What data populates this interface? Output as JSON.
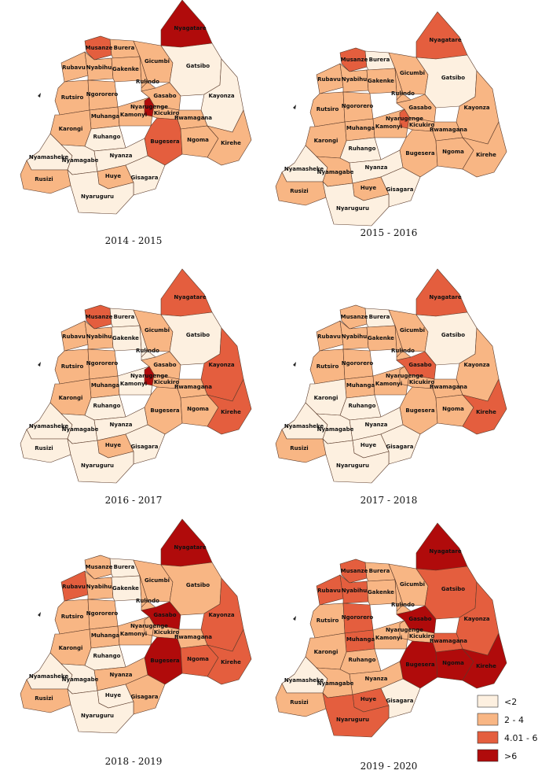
{
  "colors": {
    "c0": "#fdf0e0",
    "c1": "#f8b684",
    "c2": "#e45e3e",
    "c3": "#b00b0b"
  },
  "legend": [
    {
      "class": "c0",
      "label": "<2"
    },
    {
      "class": "c1",
      "label": "2 - 4"
    },
    {
      "class": "c2",
      "label": "4.01 - 6"
    },
    {
      "class": "c3",
      "label": ">6"
    }
  ],
  "districts": [
    "Nyagatare",
    "Musanze",
    "Burera",
    "Rubavu",
    "Nyabihu",
    "Gicumbi",
    "Gatsibo",
    "Gakenke",
    "Rulindo",
    "Kayonza",
    "Rutsiro",
    "Ngororero",
    "Gasabo",
    "Muhanga",
    "Kamonyi",
    "Nyarugenge",
    "Kicukiro",
    "Rwamagana",
    "Karongi",
    "Ruhango",
    "Bugesera",
    "Ngoma",
    "Kirehe",
    "Nyamasheke",
    "Nyamagabe",
    "Nyanza",
    "Rusizi",
    "Huye",
    "Gisagara",
    "Nyaruguru"
  ],
  "panels": [
    {
      "title": "2014 - 2015",
      "classes": {
        "Nyagatare": "c3",
        "Musanze": "c2",
        "Burera": "c1",
        "Rubavu": "c1",
        "Nyabihu": "c1",
        "Gicumbi": "c1",
        "Gatsibo": "c0",
        "Gakenke": "c1",
        "Rulindo": "c1",
        "Kayonza": "c0",
        "Rutsiro": "c1",
        "Ngororero": "c1",
        "Gasabo": "c1",
        "Muhanga": "c1",
        "Kamonyi": "c1",
        "Nyarugenge": "c3",
        "Kicukiro": "c1",
        "Rwamagana": "c1",
        "Karongi": "c1",
        "Ruhango": "c0",
        "Bugesera": "c2",
        "Ngoma": "c1",
        "Kirehe": "c1",
        "Nyamasheke": "c0",
        "Nyamagabe": "c0",
        "Nyanza": "c0",
        "Rusizi": "c1",
        "Huye": "c1",
        "Gisagara": "c0",
        "Nyaruguru": "c0"
      }
    },
    {
      "title": "2015 - 2016",
      "classes": {
        "Nyagatare": "c2",
        "Musanze": "c2",
        "Burera": "c0",
        "Rubavu": "c1",
        "Nyabihu": "c1",
        "Gicumbi": "c1",
        "Gatsibo": "c0",
        "Gakenke": "c1",
        "Rulindo": "c1",
        "Kayonza": "c1",
        "Rutsiro": "c1",
        "Ngororero": "c1",
        "Gasabo": "c1",
        "Muhanga": "c1",
        "Kamonyi": "c1",
        "Nyarugenge": "c2",
        "Kicukiro": "c1",
        "Rwamagana": "c1",
        "Karongi": "c1",
        "Ruhango": "c0",
        "Bugesera": "c1",
        "Ngoma": "c1",
        "Kirehe": "c1",
        "Nyamasheke": "c0",
        "Nyamagabe": "c1",
        "Nyanza": "c0",
        "Rusizi": "c1",
        "Huye": "c1",
        "Gisagara": "c0",
        "Nyaruguru": "c0"
      }
    },
    {
      "title": "2016 - 2017",
      "classes": {
        "Nyagatare": "c2",
        "Musanze": "c2",
        "Burera": "c0",
        "Rubavu": "c1",
        "Nyabihu": "c1",
        "Gicumbi": "c1",
        "Gatsibo": "c0",
        "Gakenke": "c0",
        "Rulindo": "c0",
        "Kayonza": "c2",
        "Rutsiro": "c1",
        "Ngororero": "c1",
        "Gasabo": "c1",
        "Muhanga": "c1",
        "Kamonyi": "c0",
        "Nyarugenge": "c3",
        "Kicukiro": "c1",
        "Rwamagana": "c1",
        "Karongi": "c1",
        "Ruhango": "c0",
        "Bugesera": "c1",
        "Ngoma": "c1",
        "Kirehe": "c2",
        "Nyamasheke": "c0",
        "Nyamagabe": "c0",
        "Nyanza": "c0",
        "Rusizi": "c0",
        "Huye": "c1",
        "Gisagara": "c0",
        "Nyaruguru": "c0"
      }
    },
    {
      "title": "2017 - 2018",
      "classes": {
        "Nyagatare": "c2",
        "Musanze": "c1",
        "Burera": "c0",
        "Rubavu": "c1",
        "Nyabihu": "c1",
        "Gicumbi": "c1",
        "Gatsibo": "c0",
        "Gakenke": "c1",
        "Rulindo": "c1",
        "Kayonza": "c1",
        "Rutsiro": "c1",
        "Ngororero": "c1",
        "Gasabo": "c2",
        "Muhanga": "c1",
        "Kamonyi": "c1",
        "Nyarugenge": "c1",
        "Kicukiro": "c1",
        "Rwamagana": "c1",
        "Karongi": "c0",
        "Ruhango": "c0",
        "Bugesera": "c1",
        "Ngoma": "c1",
        "Kirehe": "c2",
        "Nyamasheke": "c0",
        "Nyamagabe": "c0",
        "Nyanza": "c0",
        "Rusizi": "c1",
        "Huye": "c0",
        "Gisagara": "c0",
        "Nyaruguru": "c0"
      }
    },
    {
      "title": "2018 - 2019",
      "classes": {
        "Nyagatare": "c3",
        "Musanze": "c1",
        "Burera": "c0",
        "Rubavu": "c2",
        "Nyabihu": "c1",
        "Gicumbi": "c1",
        "Gatsibo": "c1",
        "Gakenke": "c0",
        "Rulindo": "c1",
        "Kayonza": "c2",
        "Rutsiro": "c1",
        "Ngororero": "c1",
        "Gasabo": "c3",
        "Muhanga": "c1",
        "Kamonyi": "c1",
        "Nyarugenge": "c1",
        "Kicukiro": "c1",
        "Rwamagana": "c1",
        "Karongi": "c1",
        "Ruhango": "c0",
        "Bugesera": "c3",
        "Ngoma": "c2",
        "Kirehe": "c2",
        "Nyamasheke": "c0",
        "Nyamagabe": "c0",
        "Nyanza": "c1",
        "Rusizi": "c1",
        "Huye": "c0",
        "Gisagara": "c1",
        "Nyaruguru": "c0"
      }
    },
    {
      "title": "2019 - 2020",
      "classes": {
        "Nyagatare": "c3",
        "Musanze": "c2",
        "Burera": "c1",
        "Rubavu": "c2",
        "Nyabihu": "c2",
        "Gicumbi": "c1",
        "Gatsibo": "c2",
        "Gakenke": "c1",
        "Rulindo": "c1",
        "Kayonza": "c2",
        "Rutsiro": "c1",
        "Ngororero": "c2",
        "Gasabo": "c3",
        "Muhanga": "c2",
        "Kamonyi": "c1",
        "Nyarugenge": "c1",
        "Kicukiro": "c1",
        "Rwamagana": "c2",
        "Karongi": "c1",
        "Ruhango": "c1",
        "Bugesera": "c3",
        "Ngoma": "c3",
        "Kirehe": "c3",
        "Nyamasheke": "c0",
        "Nyamagabe": "c1",
        "Nyanza": "c1",
        "Rusizi": "c1",
        "Huye": "c2",
        "Gisagara": "c0",
        "Nyaruguru": "c2"
      }
    }
  ]
}
